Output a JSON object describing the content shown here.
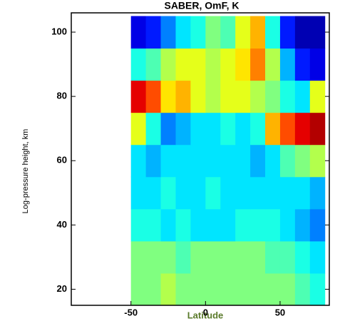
{
  "chart_data": {
    "type": "heatmap",
    "title": "SABER, OmF, K",
    "x_label": "Latitude",
    "y_label": "Log-pressure height, km",
    "x": [
      -45,
      -35,
      -25,
      -15,
      -5,
      5,
      15,
      25,
      35,
      45,
      55,
      65,
      75
    ],
    "y": [
      20,
      30,
      40,
      50,
      60,
      70,
      80,
      90,
      100
    ],
    "z": [
      [
        0,
        0,
        1,
        0,
        0,
        0,
        0,
        0,
        0,
        0,
        0,
        -1,
        -2
      ],
      [
        0,
        0,
        0,
        -1,
        0,
        0,
        0,
        0,
        0,
        -1,
        -1,
        -2,
        -3
      ],
      [
        -2,
        -2,
        -3,
        -2,
        -3,
        -3,
        -3,
        -2,
        -2,
        -2,
        -3,
        -4,
        -5
      ],
      [
        -3,
        -3,
        -2,
        -3,
        -3,
        -2,
        -3,
        -3,
        -3,
        -3,
        -3,
        -3,
        -4
      ],
      [
        -3,
        -4,
        -3,
        -3,
        -3,
        -3,
        -3,
        -3,
        -4,
        -3,
        -1,
        0,
        1
      ],
      [
        2,
        -2,
        -5,
        -4,
        -3,
        -3,
        -2,
        -3,
        -2,
        4,
        6,
        8,
        9
      ],
      [
        8,
        6,
        3,
        4,
        2,
        1,
        2,
        2,
        1,
        0,
        -2,
        -3,
        2
      ],
      [
        -2,
        -1,
        1,
        2,
        2,
        1,
        2,
        3,
        5,
        1,
        -4,
        -7,
        -8
      ],
      [
        -8,
        -7,
        -5,
        -3,
        -2,
        0,
        -1,
        2,
        4,
        -2,
        -7,
        -9,
        -9
      ]
    ],
    "colormap": "jet",
    "zlim": [
      -10,
      10
    ],
    "xlim": [
      -90,
      83
    ],
    "ylim": [
      15,
      106
    ],
    "xticks": [
      -50,
      0,
      50
    ],
    "yticks": [
      20,
      40,
      60,
      80,
      100
    ]
  }
}
